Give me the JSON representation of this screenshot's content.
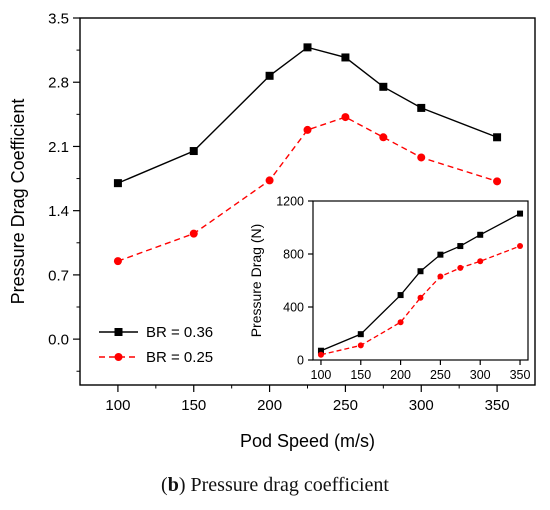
{
  "caption": {
    "letter": "b",
    "text": "Pressure drag coefficient"
  },
  "chart_data": [
    {
      "type": "line",
      "xlabel": "Pod Speed (m/s)",
      "ylabel": "Pressure Drag Coefficient",
      "xlim": [
        75,
        375
      ],
      "ylim": [
        -0.5,
        3.5
      ],
      "xticks": [
        100,
        150,
        200,
        250,
        300,
        350
      ],
      "yticks": [
        0.0,
        0.7,
        1.4,
        2.1,
        2.8,
        3.5
      ],
      "ytick_labels": [
        "0.0",
        "0.7",
        "1.4",
        "2.1",
        "2.8",
        "3.5"
      ],
      "legend_position": "bottom-left",
      "series": [
        {
          "name": "BR = 0.36",
          "color": "#000000",
          "marker": "square",
          "dash": "solid",
          "x": [
            100,
            150,
            200,
            225,
            250,
            275,
            300,
            350
          ],
          "y": [
            1.7,
            2.05,
            2.87,
            3.18,
            3.07,
            2.75,
            2.52,
            2.2
          ]
        },
        {
          "name": "BR = 0.25",
          "color": "#ff0000",
          "marker": "circle",
          "dash": "dashed",
          "x": [
            100,
            150,
            200,
            225,
            250,
            275,
            300,
            350
          ],
          "y": [
            0.85,
            1.15,
            1.73,
            2.28,
            2.42,
            2.2,
            1.98,
            1.72
          ]
        }
      ]
    },
    {
      "type": "line",
      "ylabel": "Pressure Drag (N)",
      "xlim": [
        90,
        360
      ],
      "ylim": [
        0,
        1200
      ],
      "xticks": [
        100,
        150,
        200,
        250,
        300,
        350
      ],
      "yticks": [
        0,
        400,
        800,
        1200
      ],
      "series": [
        {
          "color": "#000000",
          "marker": "square",
          "dash": "solid",
          "x": [
            100,
            150,
            200,
            225,
            250,
            275,
            300,
            350
          ],
          "y": [
            70,
            195,
            490,
            670,
            795,
            860,
            945,
            1105
          ]
        },
        {
          "color": "#ff0000",
          "marker": "circle",
          "dash": "dashed",
          "x": [
            100,
            150,
            200,
            225,
            250,
            275,
            300,
            350
          ],
          "y": [
            40,
            110,
            285,
            470,
            630,
            695,
            745,
            860
          ]
        }
      ]
    }
  ]
}
